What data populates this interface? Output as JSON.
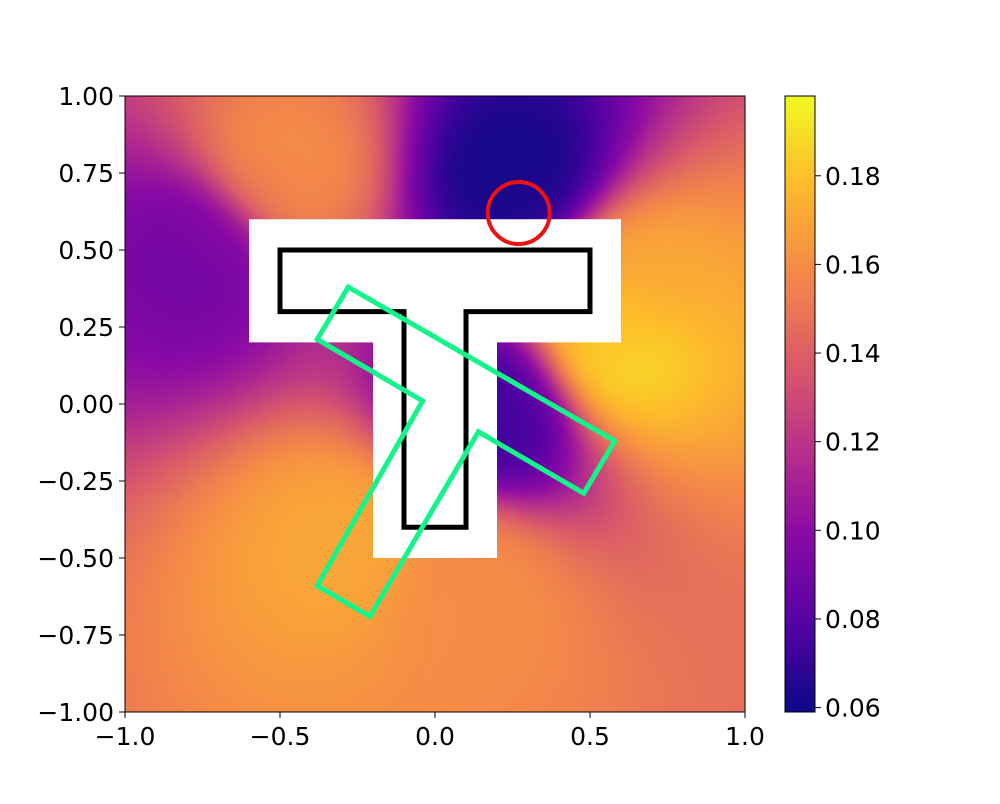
{
  "chart_data": {
    "type": "heatmap",
    "title": "",
    "xlabel": "",
    "ylabel": "",
    "xlim": [
      -1.0,
      1.0
    ],
    "ylim": [
      -1.0,
      1.0
    ],
    "grid": false,
    "x_ticks": [
      {
        "value": -1.0,
        "label": "−1.0"
      },
      {
        "value": -0.5,
        "label": "−0.5"
      },
      {
        "value": 0.0,
        "label": "0.0"
      },
      {
        "value": 0.5,
        "label": "0.5"
      },
      {
        "value": 1.0,
        "label": "1.0"
      }
    ],
    "y_ticks": [
      {
        "value": 1.0,
        "label": "1.00"
      },
      {
        "value": 0.75,
        "label": "0.75"
      },
      {
        "value": 0.5,
        "label": "0.50"
      },
      {
        "value": 0.25,
        "label": "0.25"
      },
      {
        "value": 0.0,
        "label": "0.00"
      },
      {
        "value": -0.25,
        "label": "−0.25"
      },
      {
        "value": -0.5,
        "label": "−0.50"
      },
      {
        "value": -0.75,
        "label": "−0.75"
      },
      {
        "value": -1.0,
        "label": "−1.00"
      }
    ],
    "colorbar": {
      "colormap": "plasma",
      "range": [
        0.059,
        0.198
      ],
      "ticks": [
        {
          "value": 0.06,
          "label": "0.06"
        },
        {
          "value": 0.08,
          "label": "0.08"
        },
        {
          "value": 0.1,
          "label": "0.10"
        },
        {
          "value": 0.12,
          "label": "0.12"
        },
        {
          "value": 0.14,
          "label": "0.14"
        },
        {
          "value": 0.16,
          "label": "0.16"
        },
        {
          "value": 0.18,
          "label": "0.18"
        }
      ]
    },
    "field_features": [
      {
        "x": 0.27,
        "y": 0.72,
        "value": 0.06
      },
      {
        "x": 0.58,
        "y": 0.2,
        "value": 0.19
      },
      {
        "x": 0.62,
        "y": 0.38,
        "value": 0.17
      },
      {
        "x": -0.5,
        "y": 0.75,
        "value": 0.16
      },
      {
        "x": -0.28,
        "y": -0.45,
        "value": 0.17
      },
      {
        "x": 0.2,
        "y": -0.02,
        "value": 0.07
      },
      {
        "x": 0.1,
        "y": -0.6,
        "value": 0.16
      },
      {
        "x": -0.75,
        "y": 0.5,
        "value": 0.09
      }
    ],
    "white_region": {
      "polygon": [
        [
          -0.6,
          0.6
        ],
        [
          0.6,
          0.6
        ],
        [
          0.6,
          0.2
        ],
        [
          0.2,
          0.2
        ],
        [
          0.2,
          -0.5
        ],
        [
          -0.2,
          -0.5
        ],
        [
          -0.2,
          0.2
        ],
        [
          -0.6,
          0.2
        ]
      ]
    },
    "target_shape": {
      "color": "#000000",
      "polygon": [
        [
          -0.5,
          0.5
        ],
        [
          0.5,
          0.5
        ],
        [
          0.5,
          0.3
        ],
        [
          0.1,
          0.3
        ],
        [
          0.1,
          -0.4
        ],
        [
          -0.1,
          -0.4
        ],
        [
          -0.1,
          0.3
        ],
        [
          -0.5,
          0.3
        ]
      ]
    },
    "agent_shape": {
      "color": "#12f58a",
      "polygon": [
        [
          -0.28,
          0.38
        ],
        [
          0.58,
          -0.12
        ],
        [
          0.48,
          -0.29
        ],
        [
          0.14,
          -0.09
        ],
        [
          -0.21,
          -0.69
        ],
        [
          -0.38,
          -0.59
        ],
        [
          -0.04,
          0.01
        ],
        [
          -0.38,
          0.21
        ]
      ]
    },
    "marker_circle": {
      "color": "#ee1111",
      "center": [
        0.27,
        0.62
      ],
      "radius": 0.1
    }
  }
}
